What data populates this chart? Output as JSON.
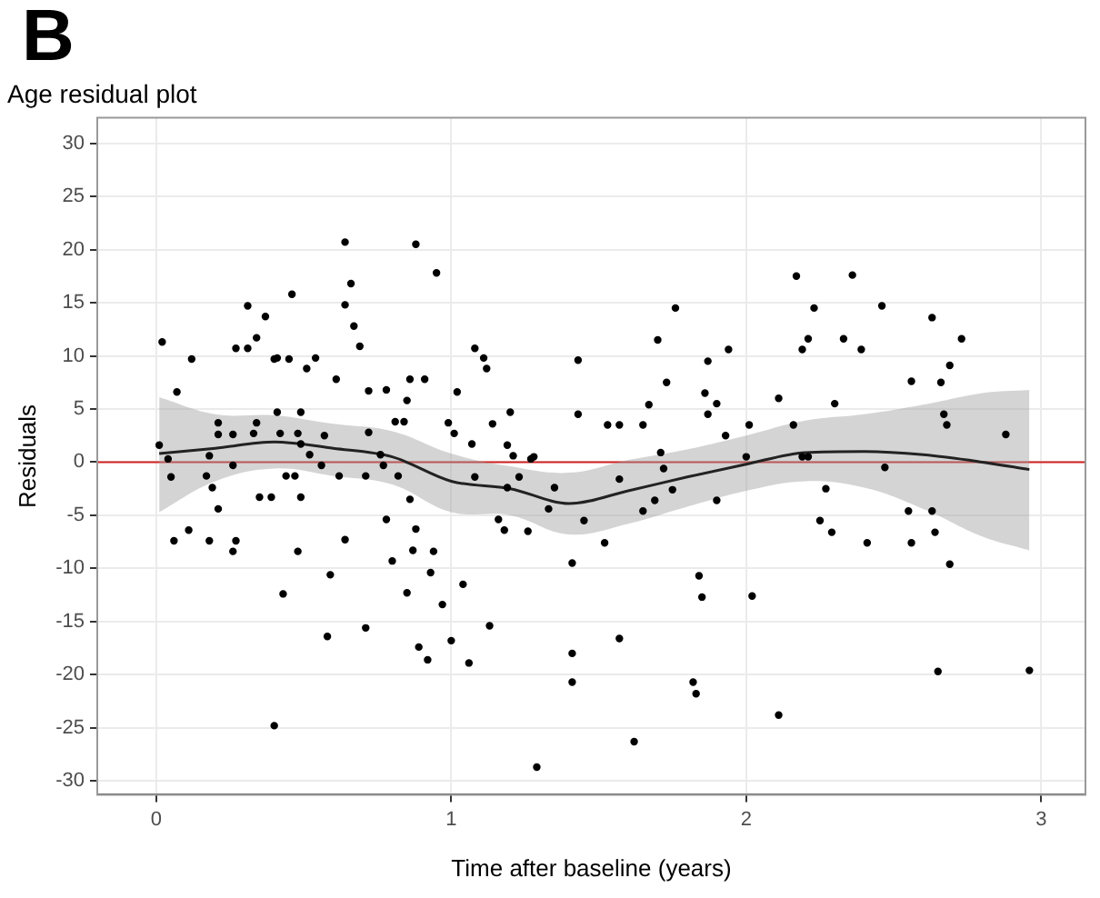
{
  "chart_data": {
    "type": "scatter",
    "title": "Age residual plot",
    "xlabel": "Time after baseline (years)",
    "ylabel": "Residuals",
    "annotations": [
      "B"
    ],
    "xlim": [
      -0.2,
      3.15
    ],
    "ylim": [
      -31.3,
      32.4
    ],
    "xticks": [
      0,
      1,
      2,
      3
    ],
    "yticks": [
      -30,
      -25,
      -20,
      -15,
      -10,
      -5,
      0,
      5,
      10,
      15,
      20,
      25,
      30
    ],
    "grid": true,
    "ref_lines": [
      {
        "axis": "y",
        "value": 0,
        "color": "#d02020"
      }
    ],
    "series": [
      {
        "marker": "circle",
        "color": "#000000",
        "x": [
          0.01,
          0.02,
          0.04,
          0.05,
          0.07,
          0.06,
          0.12,
          0.11,
          0.17,
          0.18,
          0.18,
          0.19,
          0.21,
          0.21,
          0.21,
          0.26,
          0.26,
          0.26,
          0.27,
          0.27,
          0.31,
          0.31,
          0.33,
          0.34,
          0.34,
          0.35,
          0.37,
          0.39,
          0.4,
          0.41,
          0.4,
          0.41,
          0.42,
          0.43,
          0.44,
          0.45,
          0.46,
          0.48,
          0.47,
          0.48,
          0.49,
          0.49,
          0.49,
          0.51,
          0.52,
          0.54,
          0.56,
          0.57,
          0.58,
          0.59,
          0.61,
          0.62,
          0.64,
          0.64,
          0.64,
          0.66,
          0.67,
          0.69,
          0.71,
          0.72,
          0.71,
          0.72,
          0.76,
          0.77,
          0.78,
          0.78,
          0.8,
          0.81,
          0.82,
          0.84,
          0.85,
          0.85,
          0.86,
          0.86,
          0.87,
          0.88,
          0.88,
          0.89,
          0.91,
          0.92,
          0.93,
          0.94,
          0.95,
          0.97,
          0.99,
          1.0,
          1.01,
          1.02,
          1.04,
          1.06,
          1.07,
          1.08,
          1.08,
          1.11,
          1.12,
          1.13,
          1.14,
          1.16,
          1.18,
          1.19,
          1.19,
          1.2,
          1.21,
          1.23,
          1.26,
          1.27,
          1.28,
          1.29,
          1.33,
          1.35,
          1.41,
          1.41,
          1.41,
          1.43,
          1.43,
          1.45,
          1.52,
          1.53,
          1.57,
          1.57,
          1.57,
          1.62,
          1.65,
          1.65,
          1.67,
          1.69,
          1.7,
          1.71,
          1.72,
          1.73,
          1.75,
          1.76,
          1.82,
          1.83,
          1.84,
          1.85,
          1.86,
          1.87,
          1.87,
          1.9,
          1.9,
          1.93,
          1.94,
          2.0,
          2.01,
          2.02,
          2.11,
          2.11,
          2.16,
          2.17,
          2.19,
          2.19,
          2.21,
          2.21,
          2.23,
          2.25,
          2.27,
          2.29,
          2.3,
          2.33,
          2.36,
          2.39,
          2.41,
          2.46,
          2.47,
          2.55,
          2.56,
          2.56,
          2.63,
          2.63,
          2.64,
          2.65,
          2.66,
          2.67,
          2.68,
          2.69,
          2.69,
          2.73,
          2.88,
          2.96
        ],
        "values": [
          1.6,
          11.3,
          0.3,
          -1.4,
          6.6,
          -7.4,
          9.7,
          -6.4,
          -1.3,
          0.6,
          -7.4,
          -2.4,
          3.7,
          2.6,
          -4.4,
          2.6,
          -0.3,
          -8.4,
          10.7,
          -7.4,
          10.7,
          14.7,
          2.7,
          3.7,
          11.7,
          -3.3,
          13.7,
          -3.3,
          9.7,
          9.8,
          -24.8,
          4.7,
          2.7,
          -12.4,
          -1.3,
          9.7,
          15.8,
          2.7,
          -1.3,
          -8.4,
          1.7,
          -3.3,
          4.7,
          8.8,
          0.7,
          9.8,
          -0.3,
          2.5,
          -16.4,
          -10.6,
          7.8,
          -1.3,
          20.7,
          14.8,
          -7.3,
          16.8,
          12.8,
          10.9,
          -15.6,
          6.7,
          -1.3,
          2.8,
          0.7,
          -0.3,
          6.8,
          -5.4,
          -9.3,
          3.8,
          -1.3,
          3.8,
          -12.3,
          5.8,
          7.8,
          -3.5,
          -8.3,
          -6.3,
          20.5,
          -17.4,
          7.8,
          -18.6,
          -10.4,
          -8.4,
          17.8,
          -13.4,
          3.7,
          -16.8,
          2.7,
          6.6,
          -11.5,
          -18.9,
          1.7,
          -1.4,
          10.7,
          9.8,
          8.8,
          -15.4,
          3.6,
          -5.4,
          -6.4,
          -2.4,
          1.6,
          4.7,
          0.6,
          -1.4,
          -6.5,
          0.3,
          0.5,
          -28.7,
          -4.4,
          -2.4,
          -9.5,
          -18.0,
          -20.7,
          4.5,
          9.6,
          -5.5,
          -7.6,
          3.5,
          -1.6,
          3.5,
          -16.6,
          -26.3,
          3.5,
          -4.6,
          5.4,
          -3.6,
          11.5,
          0.9,
          -0.6,
          7.5,
          -2.6,
          14.5,
          -20.7,
          -21.8,
          -10.7,
          -12.7,
          6.5,
          9.5,
          4.5,
          5.5,
          -3.6,
          2.5,
          10.6,
          0.5,
          3.5,
          -12.6,
          -23.8,
          6.0,
          3.5,
          17.5,
          10.6,
          0.5,
          11.6,
          0.5,
          14.5,
          -5.5,
          -2.5,
          -6.6,
          5.5,
          11.6,
          17.6,
          10.6,
          -7.6,
          14.7,
          -0.5,
          -4.6,
          7.6,
          -7.6,
          13.6,
          -4.6,
          -6.6,
          -19.7,
          7.5,
          4.5,
          3.5,
          9.1,
          -9.6,
          11.6,
          2.6,
          -19.6
        ]
      },
      {
        "type": "line",
        "marker": "none",
        "color": "#222222",
        "x": [
          0.01,
          0.2,
          0.4,
          0.6,
          0.8,
          1.0,
          1.2,
          1.4,
          1.6,
          1.8,
          2.0,
          2.2,
          2.4,
          2.6,
          2.8,
          2.96
        ],
        "values": [
          0.8,
          1.3,
          1.9,
          1.3,
          0.5,
          -1.8,
          -2.5,
          -3.9,
          -2.7,
          -1.4,
          -0.2,
          0.9,
          1.0,
          0.7,
          0.0,
          -0.7
        ],
        "lower": [
          -4.7,
          -1.8,
          -0.6,
          -1.3,
          -2.1,
          -4.7,
          -5.0,
          -6.8,
          -5.8,
          -4.2,
          -2.7,
          -1.8,
          -2.4,
          -4.4,
          -7.0,
          -8.3
        ],
        "upper": [
          6.1,
          4.5,
          4.4,
          3.6,
          2.9,
          0.8,
          -0.4,
          -1.0,
          0.2,
          1.2,
          2.5,
          3.9,
          4.5,
          5.4,
          6.5,
          6.8
        ]
      }
    ]
  }
}
